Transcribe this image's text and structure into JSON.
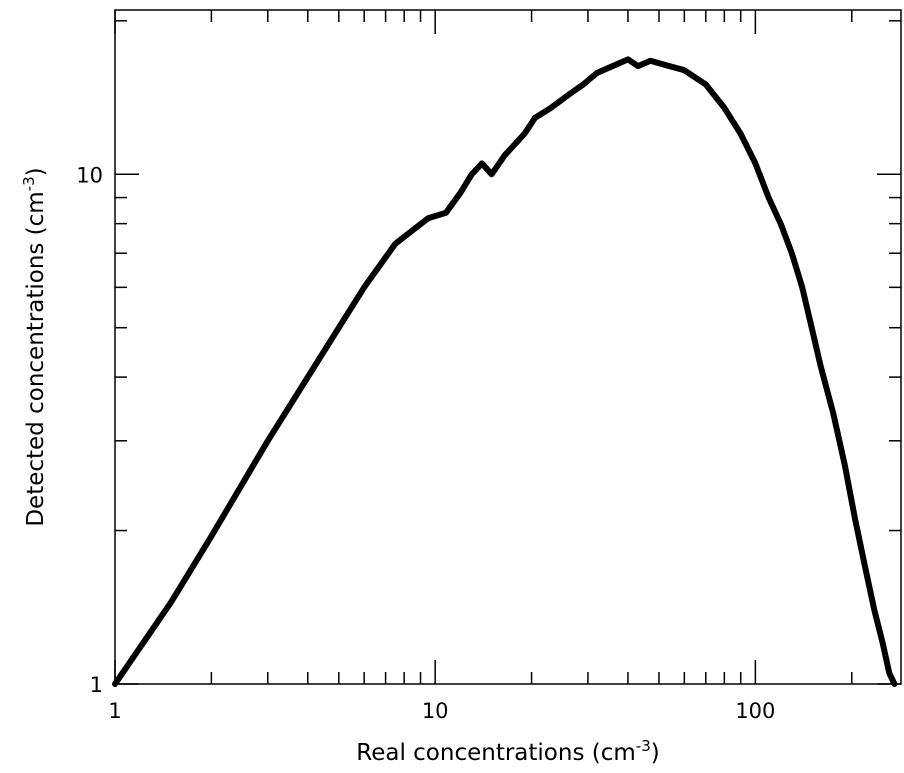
{
  "chart_data": {
    "type": "line",
    "title": "",
    "xlabel": "Real concentrations (cm",
    "xlabel_sup": "-3",
    "xlabel_close": ")",
    "ylabel": "Detected concentrations (cm",
    "ylabel_sup": "-3",
    "ylabel_close": ")",
    "xscale": "log",
    "yscale": "log",
    "xlim": [
      1,
      285
    ],
    "ylim": [
      1,
      21
    ],
    "grid": false,
    "legend": "none",
    "xticks": [
      {
        "value": 1,
        "label": "1"
      },
      {
        "value": 10,
        "label": "10"
      },
      {
        "value": 100,
        "label": "100"
      }
    ],
    "yticks": [
      {
        "value": 1,
        "label": "1"
      },
      {
        "value": 10,
        "label": "10"
      }
    ],
    "series": [
      {
        "color": "#000000",
        "x": [
          1.0,
          1.5,
          2.0,
          3.0,
          4.0,
          5.0,
          6.0,
          7.5,
          9.5,
          10.8,
          12.0,
          13.0,
          14.0,
          15.0,
          16.5,
          19.0,
          20.5,
          23.0,
          26.0,
          29.0,
          32.0,
          35.0,
          40.0,
          43.0,
          47.0,
          52.0,
          60.0,
          70.0,
          80.0,
          90.0,
          100.0,
          110.0,
          120.0,
          130.0,
          140.0,
          150.0,
          160.0,
          175.0,
          190.0,
          205.0,
          220.0,
          235.0,
          250.0,
          262.0,
          272.0
        ],
        "y": [
          1.0,
          1.45,
          1.95,
          3.0,
          4.0,
          5.0,
          6.0,
          7.3,
          8.2,
          8.4,
          9.2,
          10.0,
          10.5,
          10.0,
          10.9,
          12.0,
          12.9,
          13.5,
          14.3,
          15.0,
          15.8,
          16.2,
          16.8,
          16.3,
          16.7,
          16.4,
          16.0,
          15.0,
          13.5,
          12.0,
          10.5,
          9.0,
          8.0,
          7.0,
          6.0,
          5.0,
          4.2,
          3.4,
          2.7,
          2.1,
          1.7,
          1.4,
          1.2,
          1.05,
          1.0
        ]
      }
    ]
  }
}
